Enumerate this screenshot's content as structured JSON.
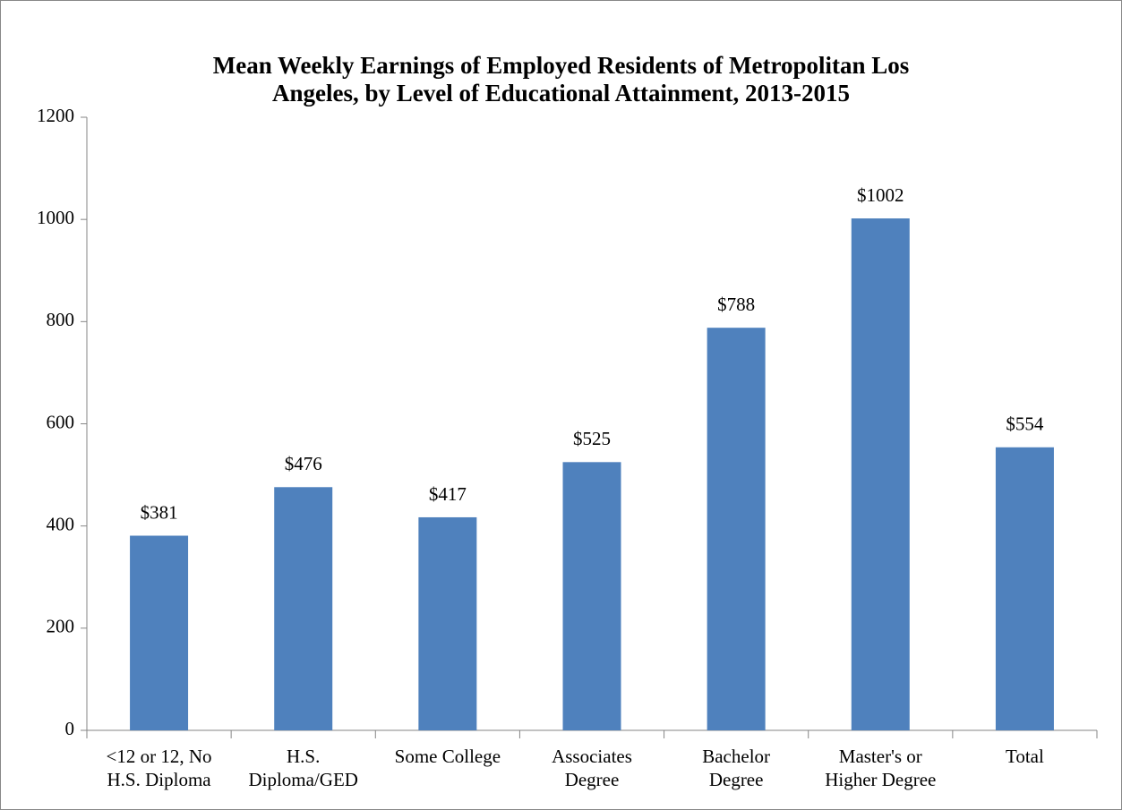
{
  "chart_data": {
    "type": "bar",
    "title": "Mean Weekly Earnings of Employed Residents of Metropolitan Los\nAngeles, by Level of Educational Attainment, 2013-2015",
    "categories": [
      "<12 or 12, No\nH.S. Diploma",
      "H.S.\nDiploma/GED",
      "Some College",
      "Associates\nDegree",
      "Bachelor\nDegree",
      "Master's or\nHigher Degree",
      "Total"
    ],
    "values": [
      381,
      476,
      417,
      525,
      788,
      1002,
      554
    ],
    "value_labels": [
      "$381",
      "$476",
      "$417",
      "$525",
      "$788",
      "$1002",
      "$554"
    ],
    "color": "#4f81bd",
    "ylim": [
      0,
      1200
    ],
    "yticks": [
      0,
      200,
      400,
      600,
      800,
      1000,
      1200
    ],
    "grid": false
  }
}
